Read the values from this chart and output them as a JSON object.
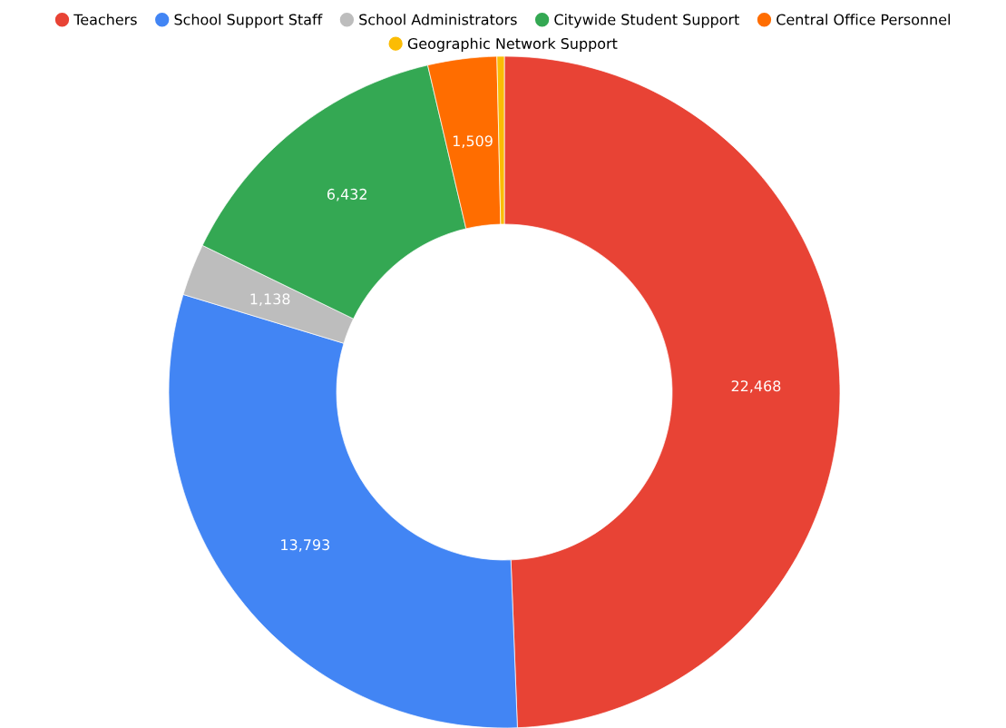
{
  "chart_data": {
    "type": "donut",
    "categories": [
      "Teachers",
      "School Support Staff",
      "School Administrators",
      "Citywide Student Support",
      "Central Office Personnel",
      "Geographic Network Support"
    ],
    "values": [
      22468,
      13793,
      1138,
      6432,
      1509,
      160
    ],
    "value_labels": [
      "22,468",
      "13,793",
      "1,138",
      "6,432",
      "1,509",
      null
    ],
    "colors": [
      "#e84335",
      "#4285f4",
      "#bdbdbd",
      "#34a853",
      "#ff6d00",
      "#fbbc04"
    ],
    "legend": "top",
    "marker": "circle"
  }
}
